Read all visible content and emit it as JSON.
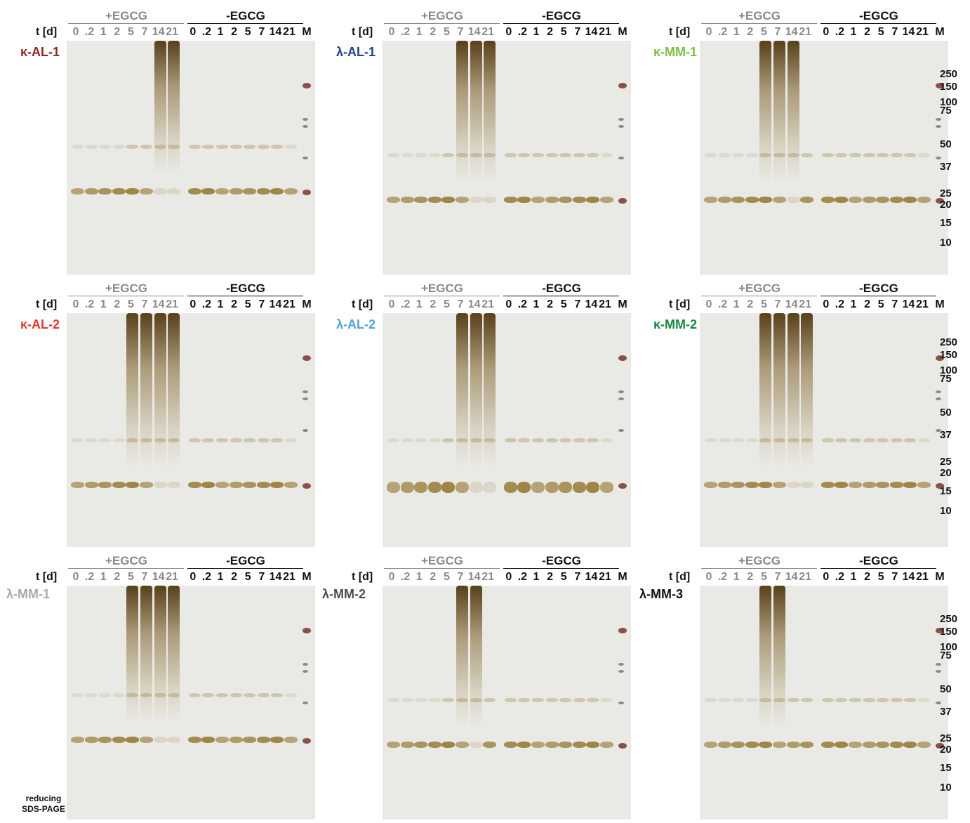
{
  "time_label": "t [d]",
  "group_plus": "+EGCG",
  "group_minus": "-EGCG",
  "lanes_plus": [
    "0",
    ".2",
    "1",
    "2",
    "5",
    "7",
    "14",
    "21"
  ],
  "lanes_minus": [
    "0",
    ".2",
    "1",
    "2",
    "5",
    "7",
    "14",
    "21"
  ],
  "marker_label": "M",
  "mw_markers": [
    "250",
    "150",
    "100",
    "75",
    "50",
    "37",
    "25",
    "20",
    "15",
    "10"
  ],
  "note_line1": "reducing",
  "note_line2": "SDS-PAGE",
  "colors": {
    "k_AL_1": "#8b2a22",
    "l_AL_1": "#1f3f91",
    "k_MM_1": "#7bc142",
    "k_AL_2": "#e03a2f",
    "l_AL_2": "#4fa3d8",
    "k_MM_2": "#138a3c",
    "l_MM_1": "#a9a9a9",
    "l_MM_2": "#4d4d4d",
    "l_MM_3": "#111111",
    "band": "#8a6a1a",
    "gel": "#e9e9e6"
  },
  "panels": [
    {
      "sample": "κ-AL-1",
      "color_key": "k_AL_1",
      "show_mw": false
    },
    {
      "sample": "λ-AL-1",
      "color_key": "l_AL_1",
      "show_mw": false
    },
    {
      "sample": "κ-MM-1",
      "color_key": "k_MM_1",
      "show_mw": true
    },
    {
      "sample": "κ-AL-2",
      "color_key": "k_AL_2",
      "show_mw": false
    },
    {
      "sample": "λ-AL-2",
      "color_key": "l_AL_2",
      "show_mw": false
    },
    {
      "sample": "κ-MM-2",
      "color_key": "k_MM_2",
      "show_mw": true
    },
    {
      "sample": "λ-MM-1",
      "color_key": "l_MM_1",
      "show_mw": false
    },
    {
      "sample": "λ-MM-2",
      "color_key": "l_MM_2",
      "show_mw": false
    },
    {
      "sample": "λ-MM-3",
      "color_key": "l_MM_3",
      "show_mw": true
    }
  ]
}
